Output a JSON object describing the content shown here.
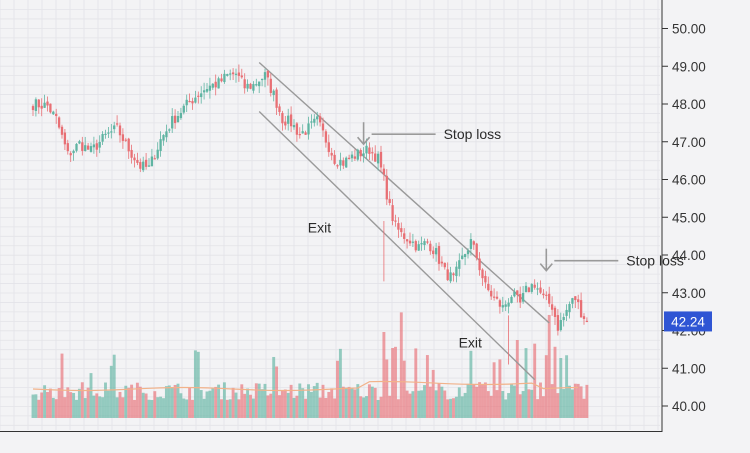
{
  "colors": {
    "background": "#f3f3f5",
    "grid": "#e3e3e8",
    "up": "#5fb4a2",
    "down": "#e86f74",
    "channel": "#9a9a9a",
    "axis": "#333333",
    "volume_ma": "#f2b28a",
    "price_badge": "#2f55d4",
    "price_badge_text": "#ffffff",
    "annotation": "#2b2b2b"
  },
  "chart_data": {
    "type": "candlestick",
    "title": "",
    "xlabel": "",
    "ylabel": "",
    "grid": true,
    "y_axis_position": "right",
    "ylim": [
      39.3,
      50.35
    ],
    "y_ticks": [
      "40.00",
      "41.00",
      "42.00",
      "43.00",
      "44.00",
      "45.00",
      "46.00",
      "47.00",
      "48.00",
      "49.00",
      "50.00"
    ],
    "y_tick_values": [
      40,
      41,
      42,
      43,
      44,
      45,
      46,
      47,
      48,
      49,
      50
    ],
    "last_price_label": "42.24",
    "last_price": 42.24,
    "volume_ma_level": 40.45,
    "channel_upper": [
      {
        "i": 0,
        "price": 49.1
      },
      {
        "i": 100,
        "price": 42.2
      }
    ],
    "channel_lower": [
      {
        "i": 0,
        "price": 47.8
      },
      {
        "i": 95,
        "price": 40.7
      }
    ],
    "channel_upper_start": 78,
    "channel_lower_start": 78,
    "annotations": [
      {
        "label": "Stop loss",
        "i": 114,
        "price": 47.2,
        "type": "stop"
      },
      {
        "label": "Stop loss",
        "i": 177,
        "price": 43.85,
        "type": "stop"
      },
      {
        "label": "Exit",
        "i": 112,
        "price": 44.6,
        "type": "exit"
      },
      {
        "label": "Exit",
        "i": 164,
        "price": 41.55,
        "type": "exit"
      }
    ],
    "price_anchors": [
      [
        0,
        48.0
      ],
      [
        5,
        47.95
      ],
      [
        8,
        47.6
      ],
      [
        12,
        46.65
      ],
      [
        16,
        46.95
      ],
      [
        20,
        46.75
      ],
      [
        25,
        47.15
      ],
      [
        29,
        47.35
      ],
      [
        33,
        46.8
      ],
      [
        37,
        46.35
      ],
      [
        40,
        46.3
      ],
      [
        44,
        47.05
      ],
      [
        48,
        47.55
      ],
      [
        52,
        47.9
      ],
      [
        56,
        48.2
      ],
      [
        60,
        48.45
      ],
      [
        64,
        48.55
      ],
      [
        67,
        48.75
      ],
      [
        70,
        48.8
      ],
      [
        73,
        48.45
      ],
      [
        76,
        48.5
      ],
      [
        78,
        48.65
      ],
      [
        80,
        48.75
      ],
      [
        83,
        48.25
      ],
      [
        86,
        47.6
      ],
      [
        89,
        47.5
      ],
      [
        92,
        47.2
      ],
      [
        95,
        47.35
      ],
      [
        98,
        47.55
      ],
      [
        101,
        47.05
      ],
      [
        104,
        46.55
      ],
      [
        107,
        46.45
      ],
      [
        110,
        46.6
      ],
      [
        113,
        46.7
      ],
      [
        116,
        46.8
      ],
      [
        119,
        46.55
      ],
      [
        121,
        46.0
      ],
      [
        123,
        45.25
      ],
      [
        125,
        44.75
      ],
      [
        127,
        44.55
      ],
      [
        130,
        44.4
      ],
      [
        133,
        44.2
      ],
      [
        136,
        44.35
      ],
      [
        139,
        44.05
      ],
      [
        142,
        43.55
      ],
      [
        145,
        43.35
      ],
      [
        148,
        43.9
      ],
      [
        151,
        44.35
      ],
      [
        153,
        43.95
      ],
      [
        156,
        43.15
      ],
      [
        159,
        42.85
      ],
      [
        162,
        42.6
      ],
      [
        165,
        42.95
      ],
      [
        168,
        42.7
      ],
      [
        170,
        43.05
      ],
      [
        173,
        43.25
      ],
      [
        176,
        42.85
      ],
      [
        179,
        42.65
      ],
      [
        181,
        42.1
      ],
      [
        183,
        42.35
      ],
      [
        185,
        42.7
      ],
      [
        187,
        42.85
      ],
      [
        189,
        42.5
      ],
      [
        191,
        42.24
      ]
    ]
  }
}
